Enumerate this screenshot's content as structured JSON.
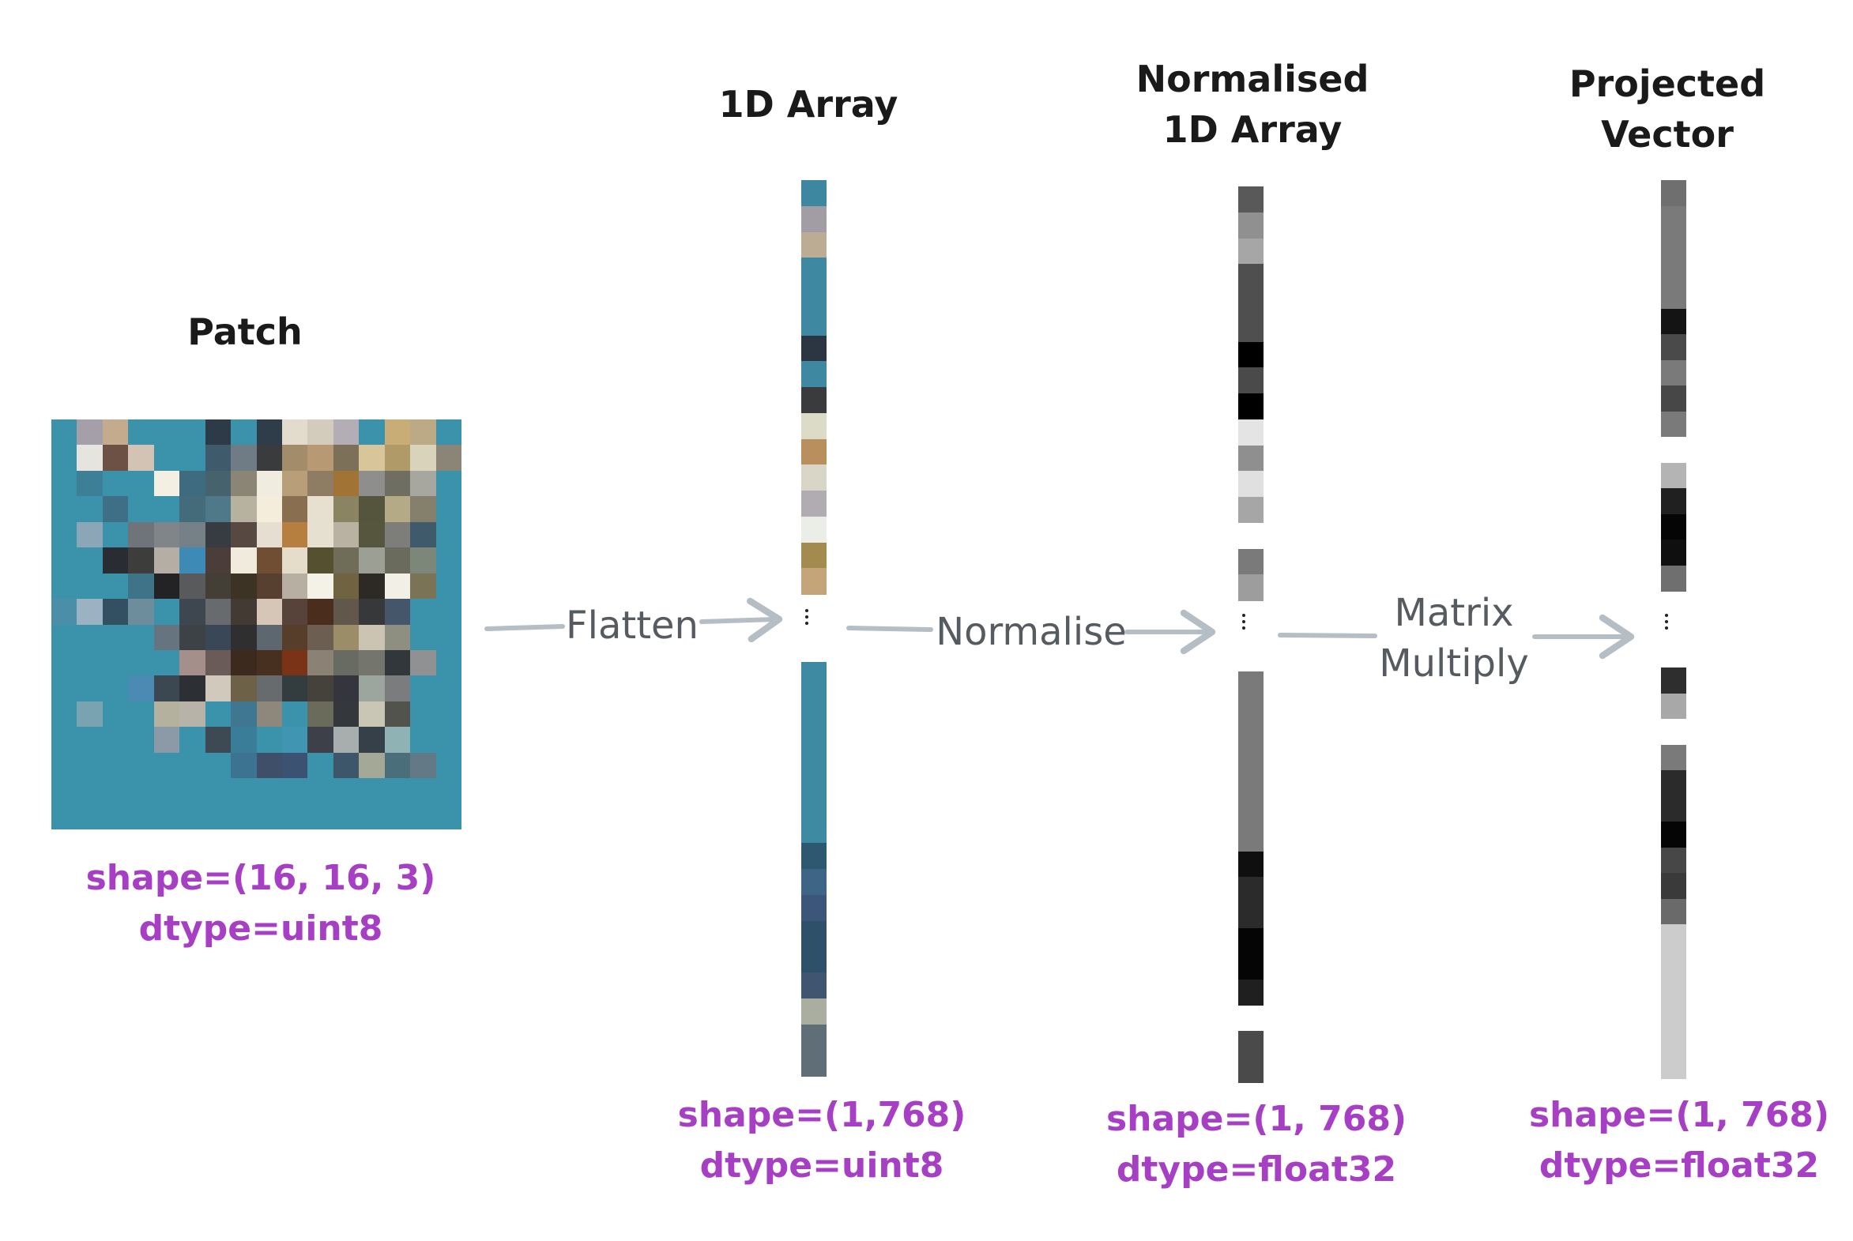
{
  "stages": {
    "patch": {
      "title": "Patch",
      "shape": "shape=(16, 16, 3)",
      "dtype": "dtype=uint8"
    },
    "array": {
      "title": "1D Array",
      "shape": "shape=(1,768)",
      "dtype": "dtype=uint8"
    },
    "normalised": {
      "title": "Normalised\n1D Array",
      "shape": "shape=(1, 768)",
      "dtype": "dtype=float32"
    },
    "projected": {
      "title": "Projected\nVector",
      "shape": "shape=(1, 768)",
      "dtype": "dtype=float32"
    }
  },
  "steps": {
    "flatten": "Flatten",
    "normalise": "Normalise",
    "matrix_multiply": "Matrix\nMultiply"
  },
  "colors": {
    "title": "#1a1a1a",
    "meta": "#a63fc4",
    "step_text": "#555b60",
    "arrow": "#b5bec4",
    "patch_base": "#3b93ab"
  },
  "patch_pixels": [
    [
      "#3b93ab",
      "#a49fa8",
      "#c5ab8e",
      "#3b93ab",
      "#3b93ab",
      "#3b93ab",
      "#2d3a48",
      "#3b93ab",
      "#2f3d4a",
      "#e3dccd",
      "#d3ccbd",
      "#b3adb5",
      "#3b93ab",
      "#c9ad76",
      "#bca985",
      "#3b93ab"
    ],
    [
      "#3b93ab",
      "#e6e4de",
      "#6d5145",
      "#d2c3b4",
      "#3b93ab",
      "#3b93ab",
      "#3f5a6a",
      "#6f7c86",
      "#3a3b3d",
      "#a38c6a",
      "#b79a74",
      "#7c7058",
      "#d8c69a",
      "#b09a68",
      "#d9d3bc",
      "#8a8577"
    ],
    [
      "#3b93ab",
      "#3e7f98",
      "#3b93ab",
      "#3b93ab",
      "#f3efe3",
      "#3e6b7d",
      "#46626c",
      "#8b8575",
      "#f0ece0",
      "#b99e7a",
      "#8e7d62",
      "#a17436",
      "#8e8f8d",
      "#6f6e62",
      "#a7a7a0",
      "#3b93ab"
    ],
    [
      "#3b93ab",
      "#3b93ab",
      "#3f6e87",
      "#3b93ab",
      "#3b93ab",
      "#436b7a",
      "#4f7989",
      "#b7b19f",
      "#f4eddc",
      "#8a6e50",
      "#e7dfcf",
      "#8b8462",
      "#55553d",
      "#b4aa86",
      "#84806c",
      "#3b93ab"
    ],
    [
      "#3b93ab",
      "#8ba7b7",
      "#3b93ab",
      "#6f747a",
      "#80858a",
      "#758087",
      "#363c42",
      "#574941",
      "#e6dfd1",
      "#b67f3f",
      "#e6e0d1",
      "#b9b2a2",
      "#56553e",
      "#7d7d79",
      "#3f5a6a",
      "#3b93ab"
    ],
    [
      "#3b93ab",
      "#3b93ab",
      "#2a2c33",
      "#3d3d3c",
      "#b4aea5",
      "#3e8ab7",
      "#4b3d3a",
      "#f1ebdd",
      "#704e34",
      "#e5ddc9",
      "#545030",
      "#6f6d58",
      "#9b9f94",
      "#6a6a5d",
      "#7d8779",
      "#3b93ab"
    ],
    [
      "#3b93ab",
      "#3b93ab",
      "#3b93ab",
      "#3f7387",
      "#232325",
      "#595a5b",
      "#433f36",
      "#3d3325",
      "#584031",
      "#b7b0a2",
      "#f4f2e7",
      "#6f6342",
      "#2d2a25",
      "#f2efe6",
      "#7b7356",
      "#3b93ab"
    ],
    [
      "#4b8ea8",
      "#9ab2c2",
      "#335062",
      "#6e8d9c",
      "#3b93ab",
      "#3e474f",
      "#686b6d",
      "#433a34",
      "#d6c6b7",
      "#57433a",
      "#4a2d1c",
      "#61584b",
      "#363839",
      "#45566a",
      "#3b93ab",
      "#3b93ab"
    ],
    [
      "#3b93ab",
      "#3b93ab",
      "#3b93ab",
      "#3b93ab",
      "#66747f",
      "#3d4247",
      "#3a4756",
      "#2f2f2f",
      "#5d6770",
      "#563e2a",
      "#6d5e52",
      "#9a8d68",
      "#cbc4b2",
      "#8e8f80",
      "#3b93ab",
      "#3b93ab"
    ],
    [
      "#3b93ab",
      "#3b93ab",
      "#3b93ab",
      "#3b93ab",
      "#3b93ab",
      "#a58f8b",
      "#6a5b58",
      "#3d2a1f",
      "#47301f",
      "#7a3316",
      "#8a8275",
      "#676b62",
      "#74766e",
      "#31373b",
      "#8f9192",
      "#3b93ab"
    ],
    [
      "#3b93ab",
      "#3b93ab",
      "#3b93ab",
      "#4b8ab3",
      "#3b4852",
      "#2c2f33",
      "#d2c9bd",
      "#6d6148",
      "#676b6e",
      "#333d40",
      "#45413b",
      "#34353d",
      "#9ca59e",
      "#7a7c7d",
      "#3b93ab",
      "#3b93ab"
    ],
    [
      "#3b93ab",
      "#79a3b1",
      "#3b93ab",
      "#3b93ab",
      "#b5b19f",
      "#b8b3a8",
      "#3b93ab",
      "#3f7690",
      "#8e877c",
      "#3b93ab",
      "#6a6b5a",
      "#34373c",
      "#c9c6b6",
      "#53534e",
      "#3b93ab",
      "#3b93ab"
    ],
    [
      "#3b93ab",
      "#3b93ab",
      "#3b93ab",
      "#3b93ab",
      "#8b9aa6",
      "#3b93ab",
      "#3d4a53",
      "#3a7d98",
      "#3b93ab",
      "#4095b3",
      "#3d4048",
      "#a8adae",
      "#364049",
      "#8fb2b5",
      "#3b93ab",
      "#3b93ab"
    ],
    [
      "#3b93ab",
      "#3b93ab",
      "#3b93ab",
      "#3b93ab",
      "#3b93ab",
      "#3b93ab",
      "#3b93ab",
      "#3b7391",
      "#3f4e69",
      "#3c5272",
      "#3b93ab",
      "#3e566a",
      "#a3a996",
      "#4a6f7a",
      "#637985",
      "#3b93ab"
    ],
    [
      "#3b93ab",
      "#3b93ab",
      "#3b93ab",
      "#3b93ab",
      "#3b93ab",
      "#3b93ab",
      "#3b93ab",
      "#3b93ab",
      "#3b93ab",
      "#3b93ab",
      "#3b93ab",
      "#3b93ab",
      "#3b93ab",
      "#3b93ab",
      "#3b93ab",
      "#3b93ab"
    ],
    [
      "#3b93ab",
      "#3b93ab",
      "#3b93ab",
      "#3b93ab",
      "#3b93ab",
      "#3b93ab",
      "#3b93ab",
      "#3b93ab",
      "#3b93ab",
      "#3b93ab",
      "#3b93ab",
      "#3b93ab",
      "#3b93ab",
      "#3b93ab",
      "#3b93ab",
      "#3b93ab"
    ]
  ],
  "strips": {
    "array_top": [
      "#3e87a0",
      "#a29da5",
      "#bcac94",
      "#3e88a1",
      "#3e88a1",
      "#3e88a1",
      "#2c3542",
      "#3e88a1",
      "#3a3b3d",
      "#dcdbc8",
      "#b88f5d",
      "#d9d6c8",
      "#b0acb1",
      "#ebeee6",
      "#a38a4f",
      "#c3a579"
    ],
    "array_bottom": [
      "#3e8aa3",
      "#3e8aa3",
      "#3e8aa3",
      "#3e8aa3",
      "#3e8aa3",
      "#3e8aa3",
      "#3e8aa3",
      "#2e5870",
      "#3e6586",
      "#3c5679",
      "#2e5068",
      "#2e5068",
      "#3f5570",
      "#a9aea1",
      "#5f6e77",
      "#5f6e77"
    ],
    "norm_top": [
      "#595959",
      "#909090",
      "#a6a6a6",
      "#4f4f4f",
      "#4f4f4f",
      "#4f4f4f",
      "#000000",
      "#4a4a4a",
      "#000000",
      "#e4e4e4",
      "#8f8f8f",
      "#e0e0e0",
      "#a6a6a6",
      "#ffffff",
      "#7a7a7a",
      "#9d9d9d"
    ],
    "norm_bottom": [
      "#7a7a7a",
      "#7a7a7a",
      "#7a7a7a",
      "#7a7a7a",
      "#7a7a7a",
      "#7a7a7a",
      "#7a7a7a",
      "#0f0f0f",
      "#2b2b2b",
      "#2b2b2b",
      "#050505",
      "#050505",
      "#1f1f1f",
      "#ffffff",
      "#4a4a4a",
      "#4a4a4a"
    ],
    "proj_top": [
      "#6f6f6f",
      "#7a7a7a",
      "#7a7a7a",
      "#7a7a7a",
      "#7a7a7a",
      "#141414",
      "#4a4a4a",
      "#7a7a7a",
      "#474747",
      "#7a7a7a",
      "#ffffff",
      "#b4b4b4",
      "#202020",
      "#050505",
      "#0f0f0f",
      "#6f6f6f"
    ],
    "proj_bottom": [
      "#2e2e2e",
      "#a8a8a8",
      "#ffffff",
      "#7a7a7a",
      "#2b2b2b",
      "#2b2b2b",
      "#050505",
      "#474747",
      "#3a3a3a",
      "#6a6a6a",
      "#cccccc",
      "#cccccc",
      "#cccccc",
      "#cccccc",
      "#cccccc",
      "#cccccc"
    ]
  }
}
